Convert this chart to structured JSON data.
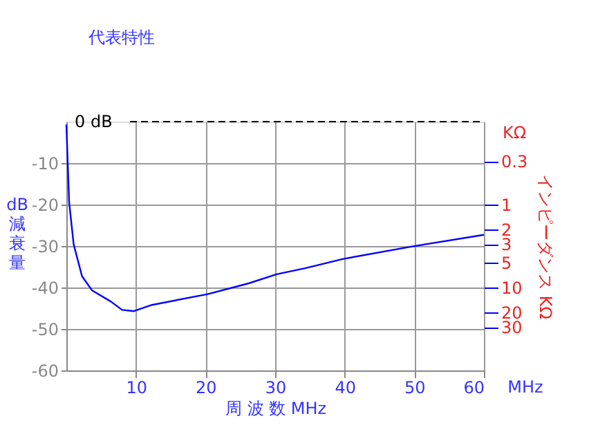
{
  "chart_data": {
    "type": "line",
    "title": "代表特性",
    "xlabel": "周 波 数  MHz",
    "ylabel": "dB 減衰量",
    "y2label": "インピーダンス KΩ",
    "x": [
      0,
      0.4,
      1.05,
      2.25,
      3.7,
      6.4,
      8.0,
      9.7,
      12.3,
      20.3,
      26.2,
      30.2,
      34.2,
      39.8,
      49.7,
      60
    ],
    "series": [
      {
        "color": "#0000ff",
        "values": [
          -0.7,
          -19.5,
          -29.6,
          -37.3,
          -40.7,
          -43.4,
          -45.4,
          -45.7,
          -44.2,
          -41.6,
          -39,
          -36.8,
          -35.4,
          -33.1,
          -30.1,
          -27.3
        ]
      }
    ],
    "xlim": [
      0,
      60
    ],
    "xticks": [
      10,
      20,
      30,
      40,
      50,
      60
    ],
    "ylim": [
      -60,
      0
    ],
    "yticks": [
      -60,
      -50,
      -40,
      -30,
      -20,
      -10
    ],
    "y2lim": [
      100,
      0.1
    ],
    "y2ticks": [
      0.3,
      1,
      2,
      3,
      5,
      10,
      20,
      30
    ],
    "log": "y2",
    "ref_lines": [
      {
        "axis": "y",
        "value": 0,
        "label": "0 dB",
        "color": "#000000",
        "line_style": "dashed"
      }
    ],
    "annotations": [
      "KΩ",
      "MHz"
    ],
    "grid": true,
    "marker": "none",
    "line_style": "solid"
  }
}
